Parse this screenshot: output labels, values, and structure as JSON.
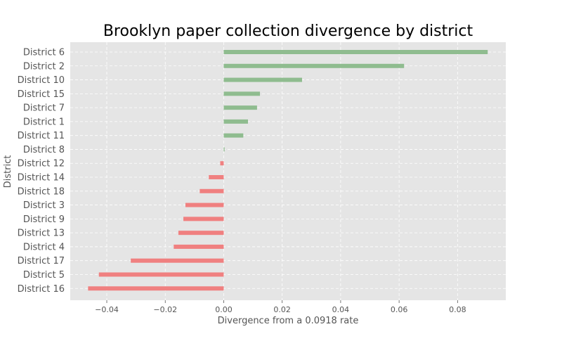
{
  "chart_data": {
    "type": "bar",
    "orientation": "horizontal",
    "title": "Brooklyn paper collection divergence by district",
    "xlabel": "Divergence from a 0.0918 rate",
    "ylabel": "District",
    "xlim": [
      -0.0525,
      0.0965
    ],
    "xticks": [
      -0.04,
      -0.02,
      0.0,
      0.02,
      0.04,
      0.06,
      0.08
    ],
    "xtick_labels": [
      "−0.04",
      "−0.02",
      "0.00",
      "0.02",
      "0.04",
      "0.06",
      "0.08"
    ],
    "grid": true,
    "categories": [
      "District 6",
      "District 2",
      "District 10",
      "District 15",
      "District 7",
      "District 1",
      "District 11",
      "District 8",
      "District 12",
      "District 14",
      "District 18",
      "District 3",
      "District 9",
      "District 13",
      "District 4",
      "District 17",
      "District 5",
      "District 16"
    ],
    "values": [
      0.0903,
      0.0617,
      0.0268,
      0.0124,
      0.0114,
      0.0083,
      0.0067,
      0.0003,
      -0.0012,
      -0.0051,
      -0.0082,
      -0.0131,
      -0.0138,
      -0.0155,
      -0.0171,
      -0.0318,
      -0.0427,
      -0.0464
    ],
    "colors": {
      "positive": "#8fbc8f",
      "negative": "#f08080"
    }
  }
}
